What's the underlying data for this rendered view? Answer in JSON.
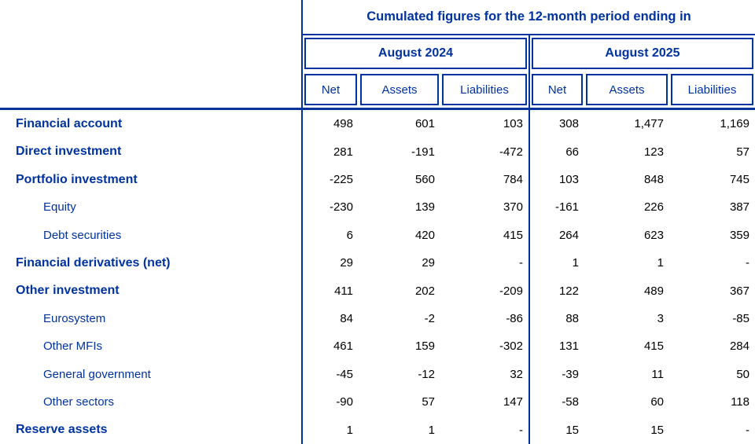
{
  "table": {
    "spanner": "Cumulated figures for the 12-month period ending in",
    "periods": [
      {
        "label": "August 2024"
      },
      {
        "label": "August 2025"
      }
    ],
    "columns": [
      "Net",
      "Assets",
      "Liabilities",
      "Net",
      "Assets",
      "Liabilities"
    ],
    "rows": [
      {
        "label": "Financial account",
        "style": "main",
        "values": [
          "498",
          "601",
          "103",
          "308",
          "1,477",
          "1,169"
        ]
      },
      {
        "label": "Direct investment",
        "style": "main",
        "values": [
          "281",
          "-191",
          "-472",
          "66",
          "123",
          "57"
        ]
      },
      {
        "label": "Portfolio investment",
        "style": "main",
        "values": [
          "-225",
          "560",
          "784",
          "103",
          "848",
          "745"
        ]
      },
      {
        "label": "Equity",
        "style": "sub",
        "values": [
          "-230",
          "139",
          "370",
          "-161",
          "226",
          "387"
        ]
      },
      {
        "label": "Debt securities",
        "style": "sub",
        "values": [
          "6",
          "420",
          "415",
          "264",
          "623",
          "359"
        ]
      },
      {
        "label": "Financial derivatives (net)",
        "style": "main",
        "values": [
          "29",
          "29",
          "-",
          "1",
          "1",
          "-"
        ]
      },
      {
        "label": "Other investment",
        "style": "main",
        "values": [
          "411",
          "202",
          "-209",
          "122",
          "489",
          "367"
        ]
      },
      {
        "label": "Eurosystem",
        "style": "sub",
        "values": [
          "84",
          "-2",
          "-86",
          "88",
          "3",
          "-85"
        ]
      },
      {
        "label": "Other MFIs",
        "style": "sub",
        "values": [
          "461",
          "159",
          "-302",
          "131",
          "415",
          "284"
        ]
      },
      {
        "label": "General government",
        "style": "sub",
        "values": [
          "-45",
          "-12",
          "32",
          "-39",
          "11",
          "50"
        ]
      },
      {
        "label": "Other sectors",
        "style": "sub",
        "values": [
          "-90",
          "57",
          "147",
          "-58",
          "60",
          "118"
        ]
      },
      {
        "label": "Reserve assets",
        "style": "main",
        "values": [
          "1",
          "1",
          "-",
          "15",
          "15",
          "-"
        ]
      }
    ],
    "colors": {
      "accent": "#0033a0",
      "number": "#000000"
    }
  }
}
